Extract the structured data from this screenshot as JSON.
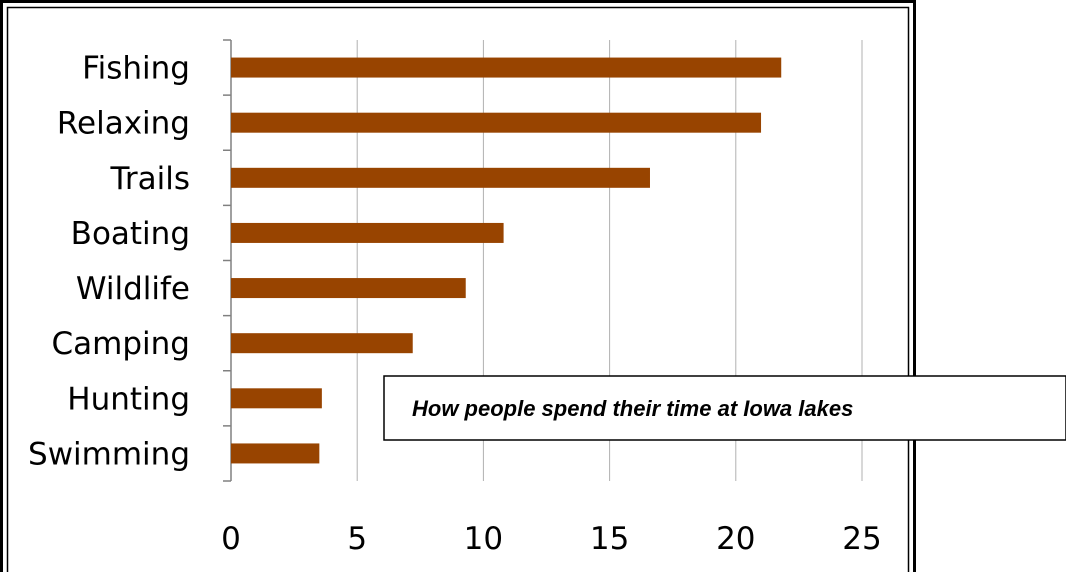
{
  "chart_data": {
    "type": "bar",
    "orientation": "horizontal",
    "title": "How people spend their time at Iowa lakes",
    "categories": [
      "Fishing",
      "Relaxing",
      "Trails",
      "Boating",
      "Wildlife",
      "Camping",
      "Hunting",
      "Swimming"
    ],
    "values": [
      21.8,
      21.0,
      16.6,
      10.8,
      9.3,
      7.2,
      3.6,
      3.5
    ],
    "xlim": [
      0,
      25
    ],
    "x_ticks": [
      "0",
      "5",
      "10",
      "15",
      "20",
      "25"
    ],
    "xlabel": "",
    "ylabel": "",
    "grid": "vertical",
    "legend": "none",
    "bar_color": "#984400",
    "grid_color": "#b0b0b0",
    "frame_color": "#000000"
  }
}
